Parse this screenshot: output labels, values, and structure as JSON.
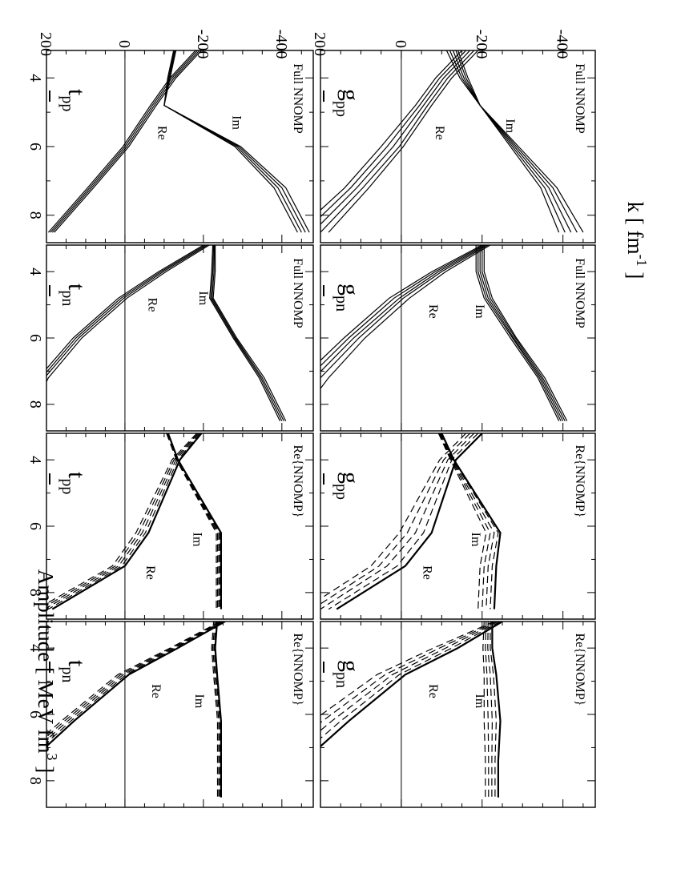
{
  "figure": {
    "ylabel": "Amplitude  [ MeV fm",
    "ylabel_sup": "3",
    "ylabel_end": " ]",
    "xlabel": "k  [ fm",
    "xlabel_sup": "-1",
    "xlabel_end": " ]",
    "orientation": "rotated 90 degrees clockwise (landscape figure on portrait page)"
  },
  "chart_data": [
    {
      "type": "line",
      "row": "top",
      "col": 1,
      "title_base": "g",
      "title_sub": "pp",
      "bar": true,
      "note": "Full NNOMP",
      "xlim": [
        3.2,
        8.8
      ],
      "ylim": [
        -480,
        200
      ],
      "xticks": [
        4,
        6,
        8
      ],
      "yticks": [
        200,
        0,
        -200,
        -400
      ],
      "zero_line": true,
      "style": "solid",
      "x": [
        3.2,
        4.0,
        4.8,
        6.0,
        7.2,
        8.5
      ],
      "series": [
        {
          "name": "Re",
          "members": [
            [
              -190,
              -125,
              -75,
              -5,
              80,
              180
            ],
            [
              -180,
              -115,
              -65,
              5,
              95,
              200
            ],
            [
              -170,
              -105,
              -55,
              20,
              110,
              220
            ],
            [
              -160,
              -95,
              -45,
              35,
              125,
              240
            ],
            [
              -150,
              -85,
              -35,
              50,
              140,
              260
            ]
          ]
        },
        {
          "name": "Im",
          "members": [
            [
              -140,
              -165,
              -195,
              -270,
              -345,
              -390
            ],
            [
              -135,
              -160,
              -195,
              -275,
              -355,
              -405
            ],
            [
              -128,
              -155,
              -195,
              -280,
              -365,
              -420
            ],
            [
              -120,
              -150,
              -195,
              -285,
              -375,
              -435
            ],
            [
              -112,
              -145,
              -195,
              -290,
              -385,
              -450
            ]
          ]
        }
      ],
      "labels": [
        {
          "text": "Re",
          "x": 5.6,
          "y": -85
        },
        {
          "text": "Im",
          "x": 5.4,
          "y": -260
        }
      ]
    },
    {
      "type": "line",
      "row": "top",
      "col": 2,
      "title_base": "g",
      "title_sub": "pn",
      "bar": true,
      "note": "Full NNOMP",
      "xlim": [
        3.2,
        8.8
      ],
      "ylim": [
        -480,
        200
      ],
      "xticks": [
        4,
        6,
        8
      ],
      "yticks": [
        200,
        0,
        -200,
        -400
      ],
      "zero_line": true,
      "style": "solid",
      "x": [
        3.2,
        4.0,
        4.8,
        6.0,
        7.2,
        8.5
      ],
      "series": [
        {
          "name": "Re",
          "members": [
            [
              -220,
              -110,
              -20,
              90,
              180,
              260
            ],
            [
              -215,
              -100,
              -5,
              105,
              200,
              280
            ],
            [
              -210,
              -92,
              5,
              118,
              215,
              300
            ],
            [
              -205,
              -84,
              18,
              130,
              230,
              320
            ],
            [
              -200,
              -76,
              30,
              142,
              245,
              340
            ]
          ]
        },
        {
          "name": "Im",
          "members": [
            [
              -205,
              -205,
              -225,
              -285,
              -355,
              -410
            ],
            [
              -200,
              -200,
              -220,
              -282,
              -350,
              -405
            ],
            [
              -195,
              -195,
              -215,
              -278,
              -346,
              -400
            ],
            [
              -190,
              -190,
              -210,
              -275,
              -342,
              -395
            ],
            [
              -185,
              -185,
              -205,
              -270,
              -338,
              -390
            ]
          ]
        }
      ],
      "labels": [
        {
          "text": "Re",
          "x": 5.2,
          "y": -70
        },
        {
          "text": "Im",
          "x": 5.2,
          "y": -185
        }
      ]
    },
    {
      "type": "line",
      "row": "top",
      "col": 3,
      "title_base": "g",
      "title_sub": "pp",
      "bar": true,
      "note": "Re{NNOMP}",
      "xlim": [
        3.2,
        8.8
      ],
      "ylim": [
        -480,
        200
      ],
      "xticks": [
        4,
        6,
        8
      ],
      "yticks": [
        200,
        0,
        -200,
        -400
      ],
      "zero_line": true,
      "style": "solid+dashed",
      "x": [
        3.2,
        4.0,
        6.2,
        7.2,
        8.5
      ],
      "series": [
        {
          "name": "Re",
          "members": [
            [
              -200,
              -135,
              -75,
              -10,
              160
            ],
            [
              -190,
              -125,
              -55,
              10,
              180
            ],
            [
              -180,
              -115,
              -35,
              35,
              200
            ],
            [
              -170,
              -105,
              -15,
              55,
              220
            ],
            [
              -160,
              -95,
              5,
              75,
              240
            ]
          ]
        },
        {
          "name": "Im",
          "members": [
            [
              -100,
              -130,
              -245,
              -235,
              -230
            ],
            [
              -98,
              -128,
              -240,
              -225,
              -220
            ],
            [
              -96,
              -126,
              -230,
              -215,
              -210
            ],
            [
              -94,
              -124,
              -220,
              -205,
              -200
            ],
            [
              -92,
              -122,
              -210,
              -195,
              -190
            ]
          ]
        }
      ],
      "labels": [
        {
          "text": "Re",
          "x": 7.4,
          "y": -55
        },
        {
          "text": "Im",
          "x": 6.4,
          "y": -175
        }
      ]
    },
    {
      "type": "line",
      "row": "top",
      "col": 4,
      "title_base": "g",
      "title_sub": "pn",
      "bar": true,
      "note": "Re{NNOMP}",
      "xlim": [
        3.2,
        8.8
      ],
      "ylim": [
        -480,
        200
      ],
      "xticks": [
        4,
        6,
        8
      ],
      "yticks": [
        200,
        0,
        -200,
        -400
      ],
      "zero_line": true,
      "style": "solid+dashed",
      "x": [
        3.2,
        4.0,
        4.8,
        6.2,
        7.4,
        8.5
      ],
      "series": [
        {
          "name": "Re",
          "members": [
            [
              -250,
              -140,
              -10,
              130,
              240,
              320
            ],
            [
              -245,
              -125,
              5,
              150,
              265,
              340
            ],
            [
              -240,
              -110,
              22,
              172,
              290,
              360
            ],
            [
              -235,
              -95,
              40,
              195,
              315,
              380
            ],
            [
              -230,
              -80,
              60,
              220,
              340,
              400
            ]
          ]
        },
        {
          "name": "Im",
          "members": [
            [
              -225,
              -225,
              -235,
              -245,
              -240,
              -240
            ],
            [
              -220,
              -220,
              -228,
              -235,
              -232,
              -232
            ],
            [
              -215,
              -214,
              -220,
              -225,
              -224,
              -224
            ],
            [
              -210,
              -208,
              -212,
              -215,
              -216,
              -216
            ],
            [
              -205,
              -202,
              -205,
              -205,
              -208,
              -208
            ]
          ]
        }
      ],
      "labels": [
        {
          "text": "Re",
          "x": 5.3,
          "y": -70
        },
        {
          "text": "Im",
          "x": 5.6,
          "y": -185
        }
      ]
    },
    {
      "type": "line",
      "row": "bottom",
      "col": 1,
      "title_base": "t",
      "title_sub": "pp",
      "bar": true,
      "note": "Full NNOMP",
      "xlim": [
        3.2,
        8.8
      ],
      "ylim": [
        -480,
        200
      ],
      "xticks": [
        4,
        6,
        8
      ],
      "yticks": [
        200,
        0,
        -200,
        -400
      ],
      "zero_line": true,
      "style": "solid",
      "x": [
        3.2,
        4.0,
        4.8,
        6.0,
        7.2,
        8.5
      ],
      "series": [
        {
          "name": "Re",
          "members": [
            [
              -195,
              -130,
              -80,
              -10,
              80,
              180
            ],
            [
              -190,
              -125,
              -75,
              -5,
              85,
              185
            ],
            [
              -185,
              -120,
              -70,
              0,
              90,
              190
            ],
            [
              -180,
              -115,
              -65,
              5,
              95,
              195
            ]
          ]
        },
        {
          "name": "Im",
          "members": [
            [
              -130,
              -115,
              -100,
              -280,
              -380,
              -440
            ],
            [
              -128,
              -113,
              -100,
              -285,
              -390,
              -450
            ],
            [
              -126,
              -111,
              -100,
              -290,
              -400,
              -460
            ],
            [
              -124,
              -109,
              -100,
              -295,
              -410,
              -470
            ]
          ]
        }
      ],
      "labels": [
        {
          "text": "Re",
          "x": 5.6,
          "y": -85
        },
        {
          "text": "Im",
          "x": 5.3,
          "y": -275
        }
      ]
    },
    {
      "type": "line",
      "row": "bottom",
      "col": 2,
      "title_base": "t",
      "title_sub": "pn",
      "bar": true,
      "note": "Full NNOMP",
      "xlim": [
        3.2,
        8.8
      ],
      "ylim": [
        -480,
        200
      ],
      "xticks": [
        4,
        6,
        8
      ],
      "yticks": [
        200,
        0,
        -200,
        -400
      ],
      "zero_line": true,
      "style": "solid",
      "x": [
        3.2,
        4.0,
        4.8,
        6.0,
        7.2,
        8.5
      ],
      "series": [
        {
          "name": "Re",
          "members": [
            [
              -215,
              -105,
              -5,
              110,
              195,
              250
            ],
            [
              -210,
              -98,
              3,
              118,
              205,
              258
            ],
            [
              -205,
              -92,
              10,
              125,
              212,
              265
            ],
            [
              -200,
              -86,
              17,
              132,
              220,
              272
            ]
          ]
        },
        {
          "name": "Im",
          "members": [
            [
              -230,
              -230,
              -225,
              -285,
              -355,
              -410
            ],
            [
              -228,
              -227,
              -222,
              -282,
              -350,
              -405
            ],
            [
              -226,
              -224,
              -219,
              -279,
              -346,
              -400
            ],
            [
              -224,
              -221,
              -216,
              -276,
              -342,
              -395
            ]
          ]
        }
      ],
      "labels": [
        {
          "text": "Re",
          "x": 5.0,
          "y": -60
        },
        {
          "text": "Im",
          "x": 4.8,
          "y": -190
        }
      ]
    },
    {
      "type": "line",
      "row": "bottom",
      "col": 3,
      "title_base": "t",
      "title_sub": "pp",
      "bar": true,
      "note": "Re{NNOMP}",
      "xlim": [
        3.2,
        8.8
      ],
      "ylim": [
        -480,
        200
      ],
      "xticks": [
        4,
        6,
        8
      ],
      "yticks": [
        200,
        0,
        -200,
        -400
      ],
      "zero_line": true,
      "style": "solid+dashed",
      "x": [
        3.2,
        4.0,
        6.2,
        7.2,
        8.5
      ],
      "series": [
        {
          "name": "Re",
          "members": [
            [
              -195,
              -140,
              -60,
              0,
              185
            ],
            [
              -192,
              -135,
              -52,
              8,
              195
            ],
            [
              -189,
              -130,
              -44,
              16,
              205
            ],
            [
              -186,
              -125,
              -36,
              24,
              215
            ],
            [
              -183,
              -120,
              -28,
              32,
              225
            ]
          ]
        },
        {
          "name": "Im",
          "members": [
            [
              -110,
              -135,
              -245,
              -245,
              -245
            ],
            [
              -109,
              -134,
              -242,
              -242,
              -242
            ],
            [
              -108,
              -133,
              -239,
              -239,
              -239
            ],
            [
              -107,
              -132,
              -236,
              -236,
              -236
            ],
            [
              -106,
              -131,
              -233,
              -233,
              -233
            ]
          ]
        }
      ],
      "labels": [
        {
          "text": "Re",
          "x": 7.4,
          "y": -55
        },
        {
          "text": "Im",
          "x": 6.4,
          "y": -175
        }
      ]
    },
    {
      "type": "line",
      "row": "bottom",
      "col": 4,
      "title_base": "t",
      "title_sub": "pn",
      "bar": true,
      "note": "Re{NNOMP}",
      "xlim": [
        3.2,
        8.8
      ],
      "ylim": [
        -480,
        200
      ],
      "xticks": [
        4,
        6,
        8
      ],
      "yticks": [
        200,
        0,
        -200,
        -400
      ],
      "zero_line": true,
      "style": "solid+dashed",
      "x": [
        3.2,
        4.0,
        4.8,
        6.2,
        7.4,
        8.5
      ],
      "series": [
        {
          "name": "Re",
          "members": [
            [
              -255,
              -135,
              -10,
              130,
              240,
              320
            ],
            [
              -252,
              -130,
              -3,
              138,
              250,
              330
            ],
            [
              -249,
              -125,
              4,
              146,
              260,
              340
            ],
            [
              -246,
              -120,
              11,
              154,
              270,
              350
            ],
            [
              -243,
              -115,
              18,
              162,
              280,
              360
            ]
          ]
        },
        {
          "name": "Im",
          "members": [
            [
              -235,
              -230,
              -235,
              -245,
              -245,
              -245
            ],
            [
              -232,
              -227,
              -232,
              -242,
              -242,
              -242
            ],
            [
              -229,
              -224,
              -229,
              -239,
              -239,
              -239
            ],
            [
              -226,
              -221,
              -226,
              -236,
              -236,
              -236
            ]
          ]
        }
      ],
      "labels": [
        {
          "text": "Re",
          "x": 5.3,
          "y": -70
        },
        {
          "text": "Im",
          "x": 5.6,
          "y": -180
        }
      ]
    }
  ]
}
